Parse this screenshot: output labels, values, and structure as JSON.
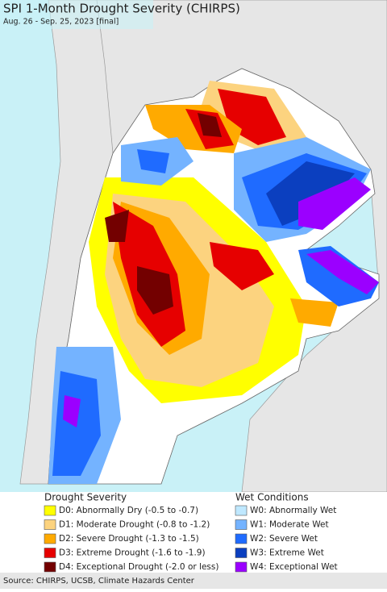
{
  "header": {
    "title": "SPI 1-Month Drought Severity (CHIRPS)",
    "subtitle": "Aug. 26 - Sep. 25, 2023 [final]"
  },
  "legend": {
    "drought": {
      "title": "Drought Severity",
      "items": [
        {
          "label": "D0: Abnormally Dry (-0.5 to -0.7)",
          "color": "#ffff00"
        },
        {
          "label": "D1: Moderate Drought (-0.8 to -1.2)",
          "color": "#fcd37f"
        },
        {
          "label": "D2: Severe Drought (-1.3 to -1.5)",
          "color": "#ffaa00"
        },
        {
          "label": "D3: Extreme Drought (-1.6 to -1.9)",
          "color": "#e60000"
        },
        {
          "label": "D4: Exceptional Drought (-2.0 or less)",
          "color": "#730000"
        }
      ]
    },
    "wet": {
      "title": "Wet Conditions",
      "items": [
        {
          "label": "W0: Abnormally Wet",
          "color": "#bfe8ff"
        },
        {
          "label": "W1: Moderate Wet",
          "color": "#74b3ff"
        },
        {
          "label": "W2: Severe Wet",
          "color": "#1f6bff"
        },
        {
          "label": "W3: Extreme Wet",
          "color": "#0b3fbf"
        },
        {
          "label": "W4: Exceptional Wet",
          "color": "#9b00ff"
        }
      ]
    }
  },
  "source": "Source: CHIRPS, UCSB, Climate Hazards Center"
}
